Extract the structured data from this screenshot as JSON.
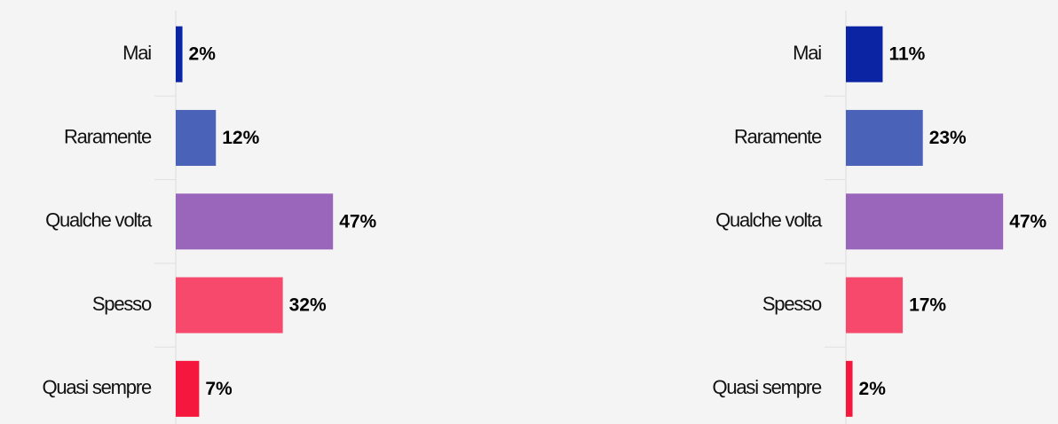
{
  "chart_data": [
    {
      "type": "bar",
      "orientation": "horizontal",
      "categories": [
        "Mai",
        "Raramente",
        "Qualche volta",
        "Spesso",
        "Quasi sempre"
      ],
      "values": [
        2,
        12,
        47,
        32,
        7
      ],
      "value_labels": [
        "2%",
        "12%",
        "47%",
        "32%",
        "7%"
      ],
      "colors": [
        "#0a24a3",
        "#4a62b8",
        "#9966bb",
        "#f7496b",
        "#f5173d"
      ]
    },
    {
      "type": "bar",
      "orientation": "horizontal",
      "categories": [
        "Mai",
        "Raramente",
        "Qualche volta",
        "Spesso",
        "Quasi sempre"
      ],
      "values": [
        11,
        23,
        47,
        17,
        2
      ],
      "value_labels": [
        "11%",
        "23%",
        "47%",
        "17%",
        "2%"
      ],
      "colors": [
        "#0a24a3",
        "#4a62b8",
        "#9966bb",
        "#f7496b",
        "#f5173d"
      ]
    }
  ]
}
